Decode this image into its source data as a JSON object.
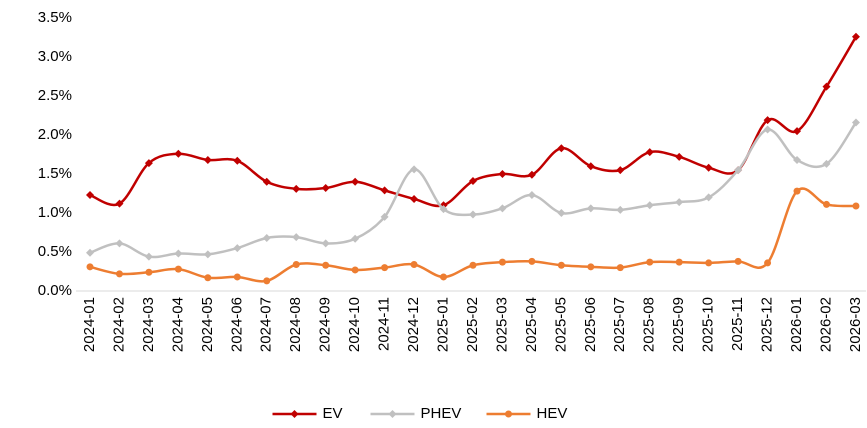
{
  "chart_data": {
    "type": "line",
    "categories": [
      "2024-01",
      "2024-02",
      "2024-03",
      "2024-04",
      "2024-05",
      "2024-06",
      "2024-07",
      "2024-08",
      "2024-09",
      "2024-10",
      "2024-11",
      "2024-12",
      "2025-01",
      "2025-02",
      "2025-03",
      "2025-04",
      "2025-05",
      "2025-06",
      "2025-07",
      "2025-08",
      "2025-09",
      "2025-10",
      "2025-11",
      "2025-12",
      "2026-01",
      "2026-02",
      "2026-03"
    ],
    "series": [
      {
        "name": "EV",
        "color": "#c00000",
        "marker": "diamond",
        "values": [
          1.23,
          1.12,
          1.64,
          1.76,
          1.68,
          1.67,
          1.4,
          1.31,
          1.32,
          1.4,
          1.29,
          1.18,
          1.1,
          1.41,
          1.5,
          1.49,
          1.83,
          1.6,
          1.55,
          1.78,
          1.72,
          1.58,
          1.55,
          2.19,
          2.05,
          2.62,
          3.26
        ]
      },
      {
        "name": "PHEV",
        "color": "#c0c0c0",
        "marker": "diamond",
        "values": [
          0.49,
          0.61,
          0.44,
          0.48,
          0.47,
          0.55,
          0.68,
          0.69,
          0.61,
          0.67,
          0.95,
          1.56,
          1.05,
          0.98,
          1.06,
          1.23,
          1.0,
          1.06,
          1.04,
          1.1,
          1.14,
          1.2,
          1.55,
          2.07,
          1.68,
          1.63,
          2.16
        ]
      },
      {
        "name": "HEV",
        "color": "#ed7d31",
        "marker": "circle",
        "values": [
          0.31,
          0.22,
          0.24,
          0.28,
          0.17,
          0.18,
          0.13,
          0.34,
          0.33,
          0.27,
          0.3,
          0.34,
          0.18,
          0.33,
          0.37,
          0.38,
          0.33,
          0.31,
          0.3,
          0.37,
          0.37,
          0.36,
          0.38,
          0.36,
          1.28,
          1.11,
          1.09
        ]
      }
    ],
    "ylim": [
      0,
      3.5
    ],
    "yticks": [
      {
        "value": 0,
        "label": "0.0%"
      },
      {
        "value": 0.5,
        "label": "0.5%"
      },
      {
        "value": 1,
        "label": "1.0%"
      },
      {
        "value": 1.5,
        "label": "1.5%"
      },
      {
        "value": 2,
        "label": "2.0%"
      },
      {
        "value": 2.5,
        "label": "2.5%"
      },
      {
        "value": 3,
        "label": "3.0%"
      },
      {
        "value": 3.5,
        "label": "3.5%"
      }
    ],
    "legend": "bottom",
    "smooth": true
  }
}
